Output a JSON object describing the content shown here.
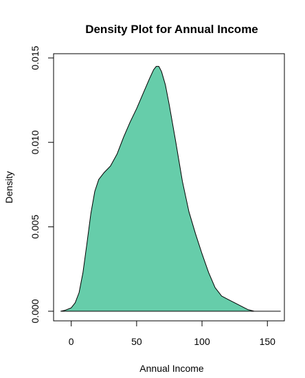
{
  "chart_data": {
    "type": "area",
    "title": "Density Plot for Annual Income",
    "xlabel": "Annual Income",
    "ylabel": "Density",
    "xlim": [
      -13.5,
      163
    ],
    "ylim": [
      -0.00057,
      0.01525
    ],
    "x_ticks": [
      {
        "value": 0,
        "label": "0"
      },
      {
        "value": 50,
        "label": "50"
      },
      {
        "value": 100,
        "label": "100"
      },
      {
        "value": 150,
        "label": "150"
      }
    ],
    "y_ticks": [
      {
        "value": 0.0,
        "label": "0.000"
      },
      {
        "value": 0.005,
        "label": "0.005"
      },
      {
        "value": 0.01,
        "label": "0.010"
      },
      {
        "value": 0.015,
        "label": "0.015"
      }
    ],
    "fill_color": "#66CDAA",
    "line_color": "#000000",
    "grid": false,
    "legend": "none",
    "x": [
      -8,
      -5,
      0,
      3,
      6,
      9,
      12,
      15,
      18,
      21,
      25,
      30,
      35,
      40,
      45,
      50,
      55,
      60,
      63,
      65,
      67,
      69,
      72,
      75,
      80,
      85,
      90,
      95,
      100,
      105,
      110,
      115,
      120,
      125,
      130,
      135,
      140,
      145,
      150,
      155,
      160
    ],
    "density": [
      0.0,
      5e-05,
      0.0002,
      0.0005,
      0.0011,
      0.0023,
      0.004,
      0.0058,
      0.0071,
      0.0078,
      0.0082,
      0.0086,
      0.0093,
      0.0103,
      0.0112,
      0.012,
      0.0129,
      0.0138,
      0.0143,
      0.0145,
      0.0145,
      0.0142,
      0.0134,
      0.0122,
      0.01,
      0.0077,
      0.0059,
      0.0046,
      0.0034,
      0.0023,
      0.0014,
      0.0009,
      0.0007,
      0.0005,
      0.0003,
      0.0001,
      0.0,
      0.0,
      0.0,
      0.0,
      0.0
    ]
  }
}
